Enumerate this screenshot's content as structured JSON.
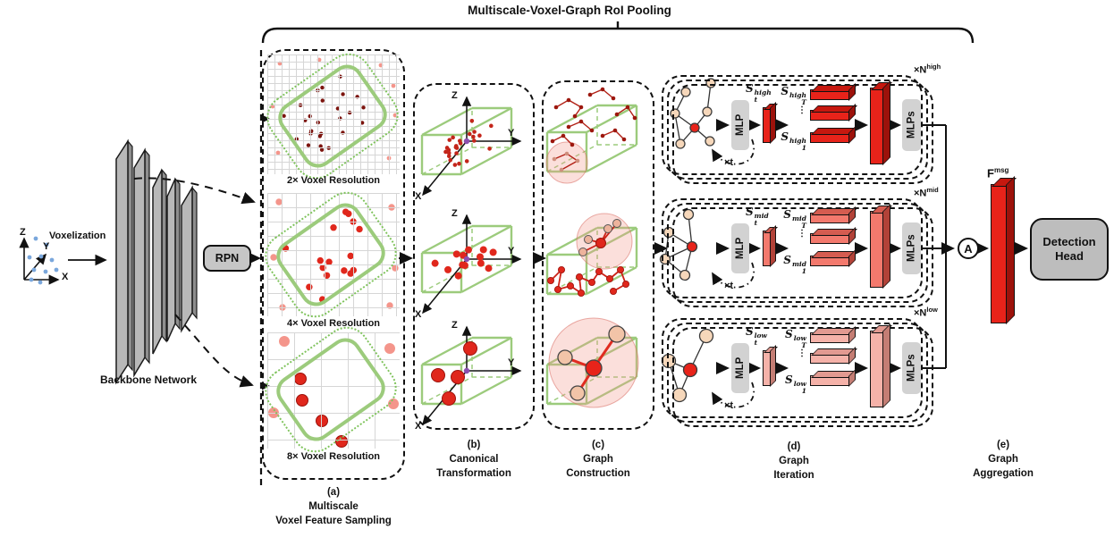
{
  "title": "Multiscale-Voxel-Graph RoI Pooling",
  "left": {
    "voxelization": "Voxelization",
    "backbone": "Backbone Network",
    "rpn": "RPN"
  },
  "axes": {
    "x": "X",
    "y": "Y",
    "z": "Z"
  },
  "panel_a": {
    "caption": "(a)",
    "caption_line1": "Multiscale",
    "caption_line2": "Voxel Feature Sampling",
    "grid_2x_label": "2× Voxel Resolution",
    "grid_4x_label": "4× Voxel Resolution",
    "grid_8x_label": "8× Voxel Resolution"
  },
  "panel_b": {
    "caption": "(b)",
    "caption_line1": "Canonical",
    "caption_line2": "Transformation"
  },
  "panel_c": {
    "caption": "(c)",
    "caption_line1": "Graph",
    "caption_line2": "Construction"
  },
  "panel_d": {
    "caption": "(d)",
    "caption_line1": "Graph",
    "caption_line2": "Iteration",
    "ellipsis": "⋮",
    "rows": [
      {
        "id": "high",
        "multiplier_base": "×N",
        "multiplier_sup": "high",
        "mlp_label": "MLP",
        "mlps_label": "MLPs",
        "iteration_label": "×t",
        "s_t": {
          "base": "S",
          "sup": "high",
          "sub": "t"
        },
        "s_T": {
          "base": "S",
          "sup": "high",
          "sub": "T"
        },
        "s_1": {
          "base": "S",
          "sup": "high",
          "sub": "1"
        },
        "colors": {
          "front": "#e8231a",
          "top": "#c6180f",
          "side": "#9c120b"
        }
      },
      {
        "id": "mid",
        "multiplier_base": "×N",
        "multiplier_sup": "mid",
        "mlp_label": "MLP",
        "mlps_label": "MLPs",
        "iteration_label": "×t",
        "s_t": {
          "base": "S",
          "sup": "mid",
          "sub": "t"
        },
        "s_T": {
          "base": "S",
          "sup": "mid",
          "sub": "T"
        },
        "s_1": {
          "base": "S",
          "sup": "mid",
          "sub": "1"
        },
        "colors": {
          "front": "#f3796d",
          "top": "#d55c50",
          "side": "#b24238"
        }
      },
      {
        "id": "low",
        "multiplier_base": "×N",
        "multiplier_sup": "low",
        "mlp_label": "MLP",
        "mlps_label": "MLPs",
        "iteration_label": "×t",
        "s_t": {
          "base": "S",
          "sup": "low",
          "sub": "t"
        },
        "s_T": {
          "base": "S",
          "sup": "low",
          "sub": "T"
        },
        "s_1": {
          "base": "S",
          "sup": "low",
          "sub": "1"
        },
        "colors": {
          "front": "#f5b2a9",
          "top": "#e29a91",
          "side": "#c47d74"
        }
      }
    ]
  },
  "panel_e": {
    "caption": "(e)",
    "caption_line1": "Graph",
    "caption_line2": "Aggregation",
    "aggregator_label": "A",
    "f_msg": {
      "base": "F",
      "sup": "msg"
    },
    "detection_head_line1": "Detection",
    "detection_head_line2": "Head"
  },
  "colors": {
    "green_box": "#9ccb7c",
    "green_dotted": "#7fc35c",
    "grid_line": "#d6d6d6",
    "dark_red_dot": "#7c140e",
    "red_dot": "#e0271c",
    "light_red_dot": "#f4958b",
    "node_tan": "#f6d7ba",
    "purple_origin": "#8b4fae",
    "blue_point": "#7aa7dc",
    "pink_highlight": "rgba(244,154,144,0.32)",
    "pink_stroke": "rgba(217,108,98,0.55)",
    "gray_box": "#d2d2d2",
    "gray_plate": "#b8b8b8"
  }
}
